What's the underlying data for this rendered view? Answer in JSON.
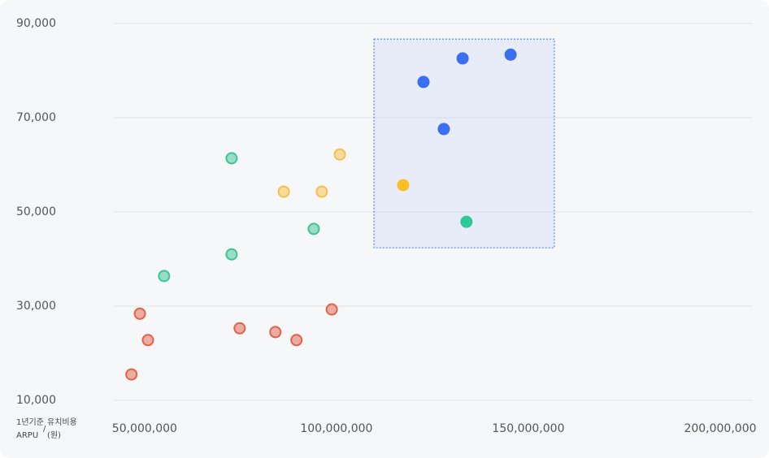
{
  "chart_data": {
    "type": "scatter",
    "axis_label": {
      "left": [
        "1년기준",
        "ARPU"
      ],
      "separator": "/",
      "right": [
        "유치비용",
        "(원)"
      ]
    },
    "xlim": [
      42400000,
      208900000
    ],
    "ylim": [
      10000,
      90000
    ],
    "xticks": [
      {
        "value": 50000000,
        "label": "50,000,000"
      },
      {
        "value": 100000000,
        "label": "100,000,000"
      },
      {
        "value": 150000000,
        "label": "150,000,000"
      },
      {
        "value": 200000000,
        "label": "200,000,000"
      }
    ],
    "yticks": [
      {
        "value": 10000,
        "label": "10,000"
      },
      {
        "value": 30000,
        "label": "30,000"
      },
      {
        "value": 50000,
        "label": "50,000"
      },
      {
        "value": 70000,
        "label": "70,000"
      },
      {
        "value": 90000,
        "label": "90,000"
      }
    ],
    "grid": true,
    "selection": {
      "xlim": [
        110200000,
        157200000
      ],
      "ylim": [
        42400,
        86700
      ],
      "color": "#3a6ff0"
    },
    "series": [
      {
        "color": "#e0624a",
        "style": "faded",
        "x": [
          47000000,
          49200000,
          51300000,
          75200000,
          84500000,
          90000000,
          99200000
        ],
        "values": [
          15500,
          28400,
          22800,
          25300,
          24500,
          22800,
          29300
        ]
      },
      {
        "color": "#3cc494",
        "style": "faded",
        "x": [
          55500000,
          73100000,
          73100000,
          94500000
        ],
        "values": [
          36400,
          41000,
          61400,
          46400
        ]
      },
      {
        "color": "#f5c04a",
        "style": "faded",
        "x": [
          86700000,
          96600000,
          101300000
        ],
        "values": [
          54300,
          54300,
          62200
        ]
      },
      {
        "color": "#fbbf24",
        "style": "solid",
        "x": [
          117800000
        ],
        "values": [
          55700
        ]
      },
      {
        "color": "#2ec99a",
        "style": "solid",
        "x": [
          134300000
        ],
        "values": [
          47900
        ]
      },
      {
        "color": "#3a6ff0",
        "style": "solid",
        "x": [
          123100000,
          128400000,
          133300000,
          145800000
        ],
        "values": [
          77600,
          67600,
          82600,
          83400
        ]
      }
    ]
  }
}
